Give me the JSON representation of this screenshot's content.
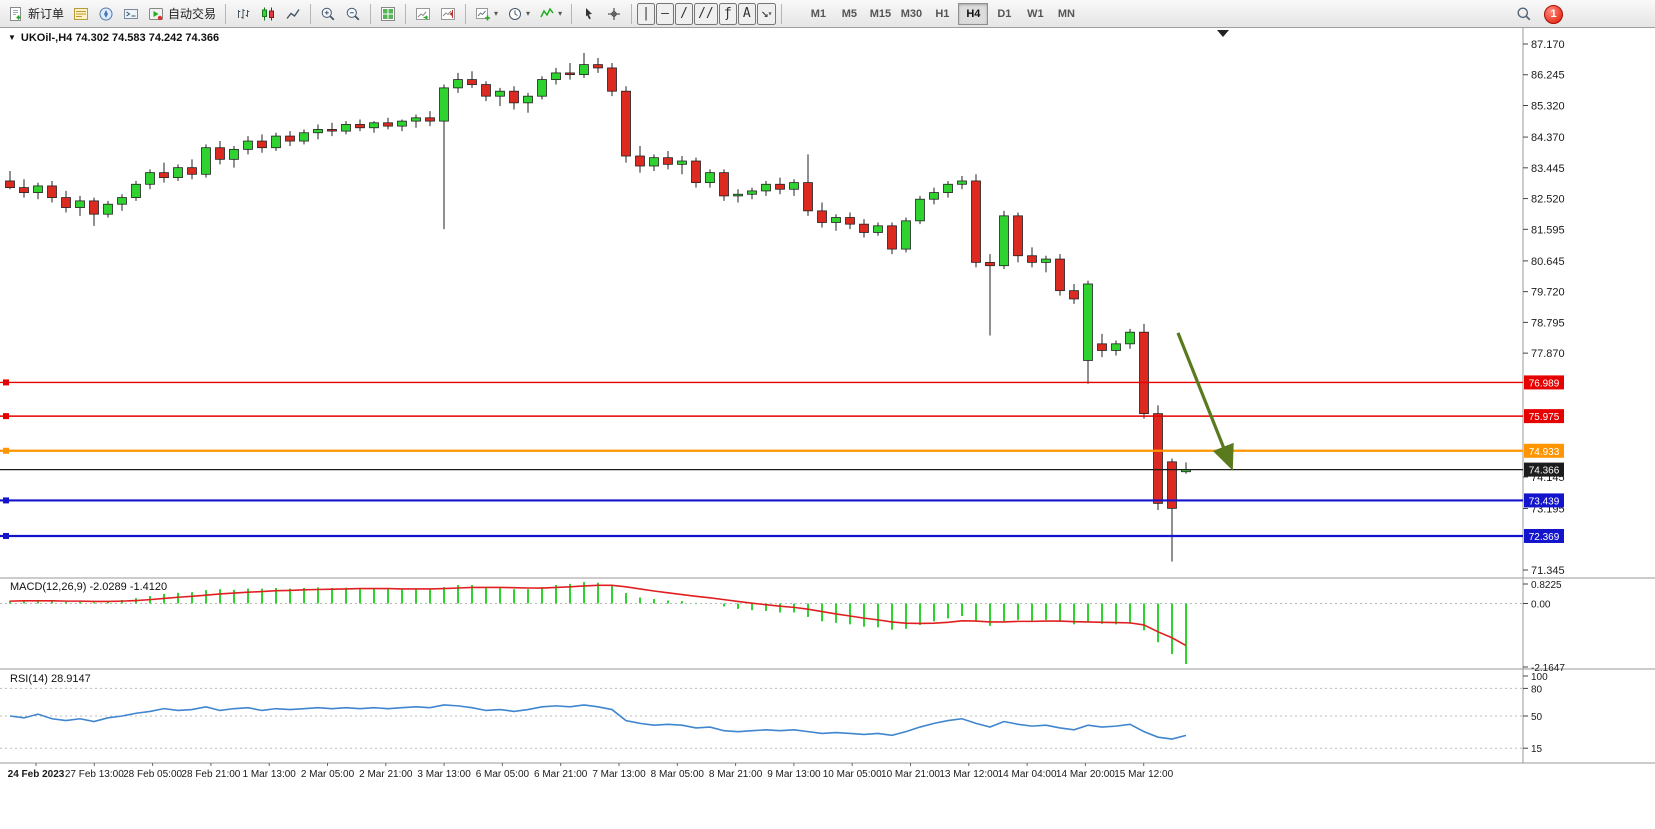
{
  "toolbar": {
    "new_order_label": "新订单",
    "auto_trading_label": "自动交易",
    "timeframes": [
      "M1",
      "M5",
      "M15",
      "M30",
      "H1",
      "H4",
      "D1",
      "W1",
      "MN"
    ],
    "active_timeframe": "H4",
    "notification_badge": "1",
    "line_tools": {
      "vertical": "|",
      "horizontal": "—",
      "trend": "/",
      "channel": "//",
      "fibonacci": "ƒ",
      "text": "A",
      "arrows": "↘"
    }
  },
  "chart": {
    "symbol_label": "UKOil-,H4 74.302 74.583 74.242 74.366",
    "macd_label": "MACD(12,26,9) -2.0289 -1.4120",
    "rsi_label": "RSI(14) 28.9147"
  },
  "chart_data": {
    "type": "candlestick",
    "symbol": "UKOil-",
    "timeframe": "H4",
    "current_quote": {
      "open": 74.302,
      "high": 74.583,
      "low": 74.242,
      "close": 74.366
    },
    "colors": {
      "bull": "#2fd32f",
      "bear": "#dd2a20",
      "wick": "#222222",
      "macd_hist": "#2fd32f",
      "macd_signal": "#e02020",
      "rsi_line": "#3f86cf",
      "axis_text": "#1a1a1a"
    },
    "price_axis": {
      "labels": [
        "87.170",
        "86.245",
        "85.320",
        "84.370",
        "83.445",
        "82.520",
        "81.595",
        "80.645",
        "79.720",
        "78.795",
        "77.870",
        "74.145",
        "73.195",
        "71.345"
      ]
    },
    "hlines": [
      {
        "price": 76.989,
        "label": "76.989",
        "color": "#e60000",
        "width": 1.4
      },
      {
        "price": 75.975,
        "label": "75.975",
        "color": "#e60000",
        "width": 1.4
      },
      {
        "price": 74.933,
        "label": "74.933",
        "color": "#ff9500",
        "width": 2.2
      },
      {
        "price": 74.366,
        "label": "74.366",
        "color": "#1c1c1c",
        "width": 1.2,
        "is_current": true
      },
      {
        "price": 73.439,
        "label": "73.439",
        "color": "#1414cc",
        "width": 2.2
      },
      {
        "price": 72.369,
        "label": "72.369",
        "color": "#1414cc",
        "width": 2.2
      }
    ],
    "candles": [
      [
        83.05,
        83.35,
        82.8,
        82.85
      ],
      [
        82.85,
        83.1,
        82.55,
        82.7
      ],
      [
        82.7,
        83.0,
        82.5,
        82.9
      ],
      [
        82.9,
        83.05,
        82.4,
        82.55
      ],
      [
        82.55,
        82.75,
        82.1,
        82.25
      ],
      [
        82.25,
        82.6,
        82.0,
        82.45
      ],
      [
        82.45,
        82.55,
        81.7,
        82.05
      ],
      [
        82.05,
        82.45,
        81.95,
        82.35
      ],
      [
        82.35,
        82.65,
        82.15,
        82.55
      ],
      [
        82.55,
        83.05,
        82.45,
        82.95
      ],
      [
        82.95,
        83.4,
        82.8,
        83.3
      ],
      [
        83.3,
        83.6,
        83.0,
        83.15
      ],
      [
        83.15,
        83.55,
        83.05,
        83.45
      ],
      [
        83.45,
        83.7,
        83.1,
        83.25
      ],
      [
        83.25,
        84.15,
        83.15,
        84.05
      ],
      [
        84.05,
        84.25,
        83.55,
        83.7
      ],
      [
        83.7,
        84.1,
        83.45,
        84.0
      ],
      [
        84.0,
        84.4,
        83.85,
        84.25
      ],
      [
        84.25,
        84.45,
        83.9,
        84.05
      ],
      [
        84.05,
        84.5,
        83.95,
        84.4
      ],
      [
        84.4,
        84.55,
        84.1,
        84.25
      ],
      [
        84.25,
        84.6,
        84.15,
        84.5
      ],
      [
        84.5,
        84.75,
        84.3,
        84.6
      ],
      [
        84.6,
        84.8,
        84.4,
        84.55
      ],
      [
        84.55,
        84.85,
        84.45,
        84.75
      ],
      [
        84.75,
        84.9,
        84.55,
        84.65
      ],
      [
        84.65,
        84.85,
        84.5,
        84.8
      ],
      [
        84.8,
        84.95,
        84.6,
        84.7
      ],
      [
        84.7,
        84.9,
        84.55,
        84.85
      ],
      [
        84.85,
        85.05,
        84.65,
        84.95
      ],
      [
        84.95,
        85.15,
        84.7,
        84.85
      ],
      [
        84.85,
        85.95,
        81.6,
        85.85
      ],
      [
        85.85,
        86.3,
        85.7,
        86.1
      ],
      [
        86.1,
        86.35,
        85.85,
        85.95
      ],
      [
        85.95,
        86.05,
        85.45,
        85.6
      ],
      [
        85.6,
        85.85,
        85.3,
        85.75
      ],
      [
        85.75,
        85.9,
        85.2,
        85.4
      ],
      [
        85.4,
        85.7,
        85.1,
        85.6
      ],
      [
        85.6,
        86.2,
        85.5,
        86.1
      ],
      [
        86.1,
        86.45,
        85.95,
        86.3
      ],
      [
        86.3,
        86.6,
        86.1,
        86.25
      ],
      [
        86.25,
        86.9,
        86.15,
        86.55
      ],
      [
        86.55,
        86.75,
        86.3,
        86.45
      ],
      [
        86.45,
        86.6,
        85.6,
        85.75
      ],
      [
        85.75,
        85.9,
        83.6,
        83.8
      ],
      [
        83.8,
        84.1,
        83.3,
        83.5
      ],
      [
        83.5,
        83.85,
        83.35,
        83.75
      ],
      [
        83.75,
        83.95,
        83.4,
        83.55
      ],
      [
        83.55,
        83.8,
        83.25,
        83.65
      ],
      [
        83.65,
        83.75,
        82.85,
        83.0
      ],
      [
        83.0,
        83.4,
        82.85,
        83.3
      ],
      [
        83.3,
        83.4,
        82.45,
        82.6
      ],
      [
        82.6,
        82.8,
        82.4,
        82.65
      ],
      [
        82.65,
        82.85,
        82.5,
        82.75
      ],
      [
        82.75,
        83.05,
        82.6,
        82.95
      ],
      [
        82.95,
        83.15,
        82.65,
        82.8
      ],
      [
        82.8,
        83.1,
        82.6,
        83.0
      ],
      [
        83.0,
        83.85,
        82.0,
        82.15
      ],
      [
        82.15,
        82.4,
        81.65,
        81.8
      ],
      [
        81.8,
        82.05,
        81.55,
        81.95
      ],
      [
        81.95,
        82.1,
        81.6,
        81.75
      ],
      [
        81.75,
        81.9,
        81.35,
        81.5
      ],
      [
        81.5,
        81.8,
        81.4,
        81.7
      ],
      [
        81.7,
        81.8,
        80.85,
        81.0
      ],
      [
        81.0,
        81.95,
        80.9,
        81.85
      ],
      [
        81.85,
        82.6,
        81.75,
        82.5
      ],
      [
        82.5,
        82.85,
        82.35,
        82.7
      ],
      [
        82.7,
        83.05,
        82.55,
        82.95
      ],
      [
        82.95,
        83.2,
        82.8,
        83.05
      ],
      [
        83.05,
        83.25,
        80.45,
        80.6
      ],
      [
        80.6,
        80.85,
        78.4,
        80.5
      ],
      [
        80.5,
        82.15,
        80.4,
        82.0
      ],
      [
        82.0,
        82.1,
        80.6,
        80.8
      ],
      [
        80.8,
        81.05,
        80.45,
        80.6
      ],
      [
        80.6,
        80.8,
        80.3,
        80.7
      ],
      [
        80.7,
        80.85,
        79.6,
        79.75
      ],
      [
        79.75,
        79.95,
        79.35,
        79.5
      ],
      [
        77.65,
        80.05,
        76.95,
        79.95
      ],
      [
        78.15,
        78.45,
        77.75,
        77.95
      ],
      [
        77.95,
        78.25,
        77.8,
        78.15
      ],
      [
        78.15,
        78.6,
        78.0,
        78.5
      ],
      [
        78.5,
        78.75,
        75.9,
        76.05
      ],
      [
        76.05,
        76.3,
        73.15,
        73.35
      ],
      [
        74.6,
        74.7,
        71.6,
        73.2
      ],
      [
        74.302,
        74.583,
        74.242,
        74.366
      ]
    ],
    "macd": {
      "label": "MACD(12,26,9)",
      "main_value": -2.0289,
      "signal_value": -1.412,
      "range": {
        "max": 0.8225,
        "min": -2.1647
      },
      "axis": [
        "0.8225",
        "0.00",
        "-2.1647"
      ],
      "hist": [
        0.1,
        0.12,
        0.1,
        0.08,
        0.05,
        0.06,
        0.04,
        0.08,
        0.12,
        0.18,
        0.25,
        0.32,
        0.36,
        0.38,
        0.45,
        0.48,
        0.46,
        0.5,
        0.5,
        0.52,
        0.5,
        0.52,
        0.54,
        0.52,
        0.53,
        0.52,
        0.5,
        0.5,
        0.48,
        0.5,
        0.48,
        0.55,
        0.62,
        0.62,
        0.55,
        0.52,
        0.48,
        0.48,
        0.55,
        0.62,
        0.66,
        0.72,
        0.7,
        0.6,
        0.35,
        0.2,
        0.15,
        0.1,
        0.08,
        0.02,
        0.0,
        -0.1,
        -0.18,
        -0.22,
        -0.25,
        -0.3,
        -0.3,
        -0.45,
        -0.6,
        -0.65,
        -0.7,
        -0.78,
        -0.8,
        -0.88,
        -0.85,
        -0.72,
        -0.6,
        -0.5,
        -0.42,
        -0.6,
        -0.75,
        -0.6,
        -0.55,
        -0.58,
        -0.55,
        -0.62,
        -0.7,
        -0.62,
        -0.68,
        -0.7,
        -0.68,
        -0.9,
        -1.3,
        -1.7,
        -2.03
      ],
      "signal": [
        0.08,
        0.09,
        0.09,
        0.09,
        0.08,
        0.08,
        0.07,
        0.07,
        0.08,
        0.1,
        0.13,
        0.17,
        0.21,
        0.24,
        0.28,
        0.32,
        0.35,
        0.38,
        0.4,
        0.43,
        0.44,
        0.46,
        0.47,
        0.48,
        0.49,
        0.5,
        0.5,
        0.5,
        0.49,
        0.49,
        0.49,
        0.5,
        0.52,
        0.54,
        0.54,
        0.54,
        0.53,
        0.52,
        0.52,
        0.54,
        0.56,
        0.59,
        0.61,
        0.61,
        0.56,
        0.49,
        0.42,
        0.36,
        0.3,
        0.24,
        0.19,
        0.13,
        0.07,
        0.01,
        -0.04,
        -0.09,
        -0.13,
        -0.19,
        -0.27,
        -0.35,
        -0.42,
        -0.49,
        -0.55,
        -0.62,
        -0.66,
        -0.67,
        -0.66,
        -0.63,
        -0.58,
        -0.59,
        -0.62,
        -0.62,
        -0.6,
        -0.6,
        -0.59,
        -0.59,
        -0.61,
        -0.62,
        -0.63,
        -0.64,
        -0.65,
        -0.72,
        -0.95,
        -1.15,
        -1.41
      ]
    },
    "rsi": {
      "label": "RSI(14)",
      "value": 28.9147,
      "axis": [
        "100",
        "80",
        "50",
        "15"
      ],
      "levels": [
        80,
        50,
        15
      ],
      "range": {
        "max": 100,
        "min": 0
      },
      "values": [
        50,
        48,
        52,
        47,
        45,
        47,
        44,
        48,
        50,
        53,
        55,
        58,
        56,
        57,
        60,
        56,
        58,
        59,
        56,
        58,
        57,
        58,
        59,
        58,
        59,
        58,
        59,
        58,
        59,
        60,
        59,
        62,
        61,
        59,
        56,
        57,
        55,
        57,
        60,
        61,
        60,
        62,
        60,
        57,
        45,
        42,
        40,
        41,
        40,
        37,
        38,
        34,
        33,
        34,
        35,
        34,
        35,
        33,
        31,
        32,
        31,
        30,
        31,
        29,
        33,
        38,
        42,
        45,
        47,
        42,
        38,
        44,
        41,
        39,
        40,
        37,
        35,
        40,
        38,
        39,
        41,
        33,
        27,
        25,
        28.91
      ]
    },
    "time_axis": [
      "24 Feb 2023",
      "27 Feb 13:00",
      "28 Feb 05:00",
      "28 Feb 21:00",
      "1 Mar 13:00",
      "2 Mar 05:00",
      "2 Mar 21:00",
      "3 Mar 13:00",
      "6 Mar 05:00",
      "6 Mar 21:00",
      "7 Mar 13:00",
      "8 Mar 05:00",
      "8 Mar 21:00",
      "9 Mar 13:00",
      "10 Mar 05:00",
      "10 Mar 21:00",
      "13 Mar 12:00",
      "14 Mar 04:00",
      "14 Mar 20:00",
      "15 Mar 12:00"
    ],
    "annotations": [
      {
        "type": "arrow",
        "from_price": 78.48,
        "to_price": 74.47,
        "color": "#5a7a1e"
      }
    ]
  }
}
